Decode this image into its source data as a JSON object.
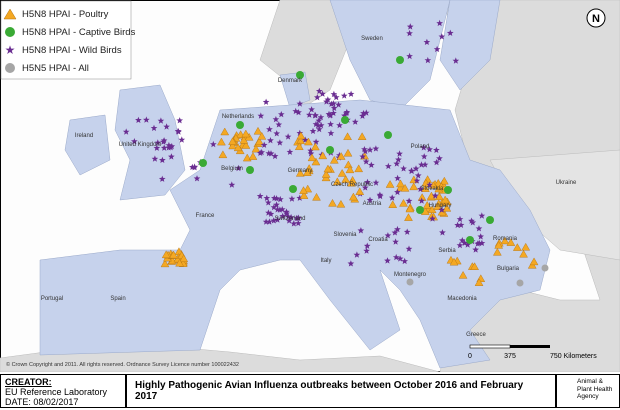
{
  "legend": {
    "items": [
      "H5N8 HPAI - Poultry",
      "H5N8 HPAI - Captive Birds",
      "H5N8 HPAI - Wild Birds",
      "H5N5 HPAI - All"
    ]
  },
  "north_arrow": "N",
  "country_labels": [
    "Sweden",
    "Denmark",
    "Netherlands",
    "United Kingdom",
    "Ireland",
    "Belgium",
    "Germany",
    "Poland",
    "France",
    "Switzerland",
    "Austria",
    "Czech Republic",
    "Slovakia",
    "Hungary",
    "Slovenia",
    "Croatia",
    "Romania",
    "Serbia",
    "Montenegro",
    "Bulgaria",
    "Macedonia",
    "Italy",
    "Spain",
    "Portugal",
    "Greece",
    "Ukraine"
  ],
  "copyright": "© Crown Copyright and 2011. All rights reserved. Ordnance Survey Licence number 100022432",
  "scale_bar": [
    "0",
    "375",
    "750 Kilometers"
  ],
  "footer": {
    "creator_label": "CREATOR:",
    "creator": "EU Reference Laboratory",
    "date": "DATE: 08/02/2017",
    "title": "Highly Pathogenic Avian Influenza outbreaks between October 2016 and February 2017",
    "agency": [
      "Animal &",
      "Plant Health",
      "Agency"
    ]
  }
}
